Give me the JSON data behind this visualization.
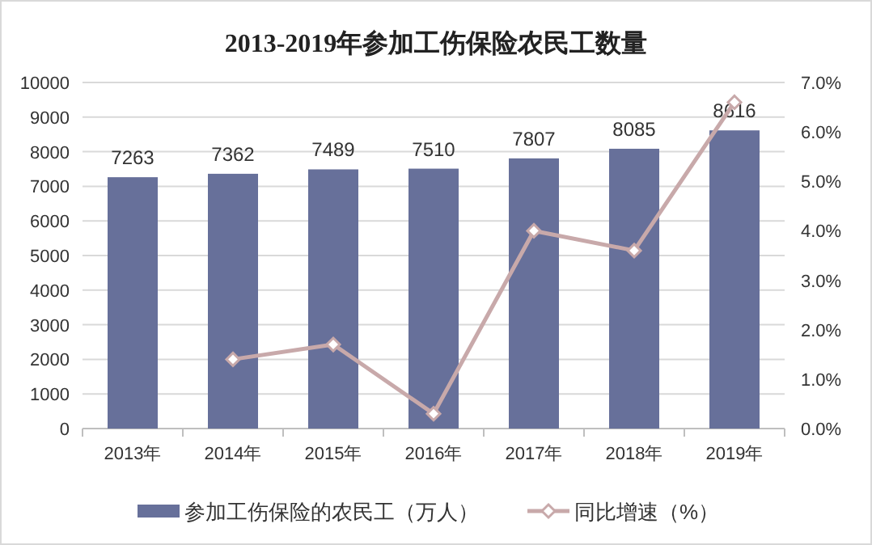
{
  "chart_data": {
    "type": "bar",
    "title": "2013-2019年参加工伤保险农民工数量",
    "categories": [
      "2013年",
      "2014年",
      "2015年",
      "2016年",
      "2017年",
      "2018年",
      "2019年"
    ],
    "series": [
      {
        "name": "参加工伤保险的农民工（万人）",
        "color": "#67709a",
        "values": [
          7263,
          7362,
          7489,
          7510,
          7807,
          8085,
          8616
        ],
        "value_labels": [
          "7263",
          "7362",
          "7489",
          "7510",
          "7807",
          "8085",
          "8616"
        ]
      },
      {
        "name": "同比增速（%）",
        "type": "line",
        "axis": "y2",
        "color": "#c8a9aa",
        "marker": "diamond",
        "values": [
          null,
          1.4,
          1.7,
          0.3,
          4.0,
          3.6,
          6.6
        ]
      }
    ],
    "ylim": [
      0,
      10000
    ],
    "yticks": [
      0,
      1000,
      2000,
      3000,
      4000,
      5000,
      6000,
      7000,
      8000,
      9000,
      10000
    ],
    "y2lim": [
      0,
      7
    ],
    "y2ticks": [
      {
        "value": 0,
        "label": "0.0%"
      },
      {
        "value": 1,
        "label": "1.0%"
      },
      {
        "value": 2,
        "label": "2.0%"
      },
      {
        "value": 3,
        "label": "3.0%"
      },
      {
        "value": 4,
        "label": "4.0%"
      },
      {
        "value": 5,
        "label": "5.0%"
      },
      {
        "value": 6,
        "label": "6.0%"
      },
      {
        "value": 7,
        "label": "7.0%"
      }
    ],
    "grid": "y",
    "legend": "bottom"
  }
}
